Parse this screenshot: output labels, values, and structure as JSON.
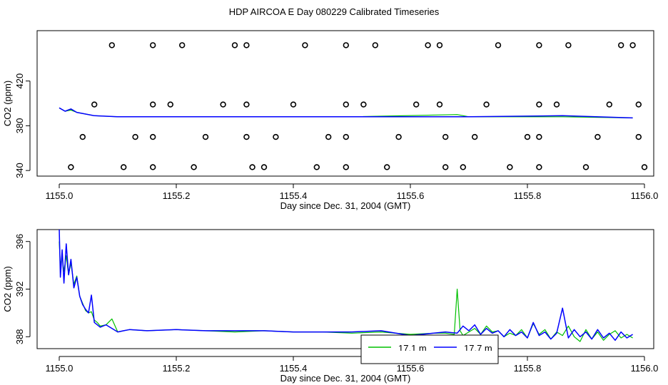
{
  "title": "HDP AIRCOA E  Day 080229  Calibrated Timeseries",
  "colors": {
    "green": "#00c000",
    "blue": "#0000ff",
    "black": "#000000"
  },
  "chart_data": [
    {
      "type": "line",
      "panel": "top",
      "xlabel": "Day since Dec. 31, 2004 (GMT)",
      "ylabel": "CO2 (ppm)",
      "xlim": [
        1155.0,
        1156.0
      ],
      "ylim": [
        335,
        465
      ],
      "xticks": [
        "1155.0",
        "1155.2",
        "1155.4",
        "1155.6",
        "1155.8",
        "1156.0"
      ],
      "yticks": [
        "340",
        "380",
        "420"
      ],
      "grid": false,
      "series": [
        {
          "color": "#00c000",
          "x": [
            1155.0,
            1155.01,
            1155.02,
            1155.03,
            1155.06,
            1155.1,
            1155.3,
            1155.5,
            1155.68,
            1155.7,
            1155.86,
            1155.98
          ],
          "y": [
            396,
            393,
            394,
            392,
            389,
            388,
            388,
            388,
            390,
            388,
            388,
            387
          ]
        },
        {
          "color": "#0000ff",
          "x": [
            1155.0,
            1155.01,
            1155.02,
            1155.03,
            1155.06,
            1155.1,
            1155.3,
            1155.5,
            1155.7,
            1155.86,
            1155.98
          ],
          "y": [
            396,
            393,
            395,
            392,
            389,
            388,
            388,
            388,
            388,
            389,
            387
          ]
        }
      ],
      "markers": {
        "symbol": "open-circle",
        "rows": [
          {
            "y": 452,
            "x": [
              1155.09,
              1155.16,
              1155.21,
              1155.3,
              1155.32,
              1155.42,
              1155.49,
              1155.54,
              1155.63,
              1155.65,
              1155.75,
              1155.82,
              1155.87,
              1155.96,
              1155.98
            ]
          },
          {
            "y": 399,
            "x": [
              1155.06,
              1155.16,
              1155.19,
              1155.28,
              1155.32,
              1155.4,
              1155.49,
              1155.52,
              1155.61,
              1155.65,
              1155.73,
              1155.82,
              1155.85,
              1155.94,
              1155.99
            ]
          },
          {
            "y": 370,
            "x": [
              1155.04,
              1155.13,
              1155.16,
              1155.25,
              1155.32,
              1155.37,
              1155.46,
              1155.49,
              1155.58,
              1155.66,
              1155.71,
              1155.8,
              1155.82,
              1155.92,
              1155.99
            ]
          },
          {
            "y": 343,
            "x": [
              1155.02,
              1155.11,
              1155.16,
              1155.23,
              1155.33,
              1155.35,
              1155.44,
              1155.49,
              1155.56,
              1155.66,
              1155.69,
              1155.77,
              1155.82,
              1155.9,
              1156.0
            ]
          }
        ]
      }
    },
    {
      "type": "line",
      "panel": "bottom",
      "xlabel": "Day since Dec. 31, 2004 (GMT)",
      "ylabel": "CO2 (ppm)",
      "xlim": [
        1155.0,
        1156.0
      ],
      "ylim": [
        387.0,
        397.0
      ],
      "xticks": [
        "1155.0",
        "1155.2",
        "1155.4",
        "1155.6",
        "1155.8",
        "1156.0"
      ],
      "yticks": [
        "388",
        "392",
        "396"
      ],
      "grid": false,
      "legend": {
        "placement": "bottom-center",
        "entries": [
          {
            "color": "#00c000",
            "label": "17.1 m"
          },
          {
            "color": "#0000ff",
            "label": "17.7 m"
          }
        ]
      },
      "series": [
        {
          "color": "#00c000",
          "label": "17.1 m",
          "x": [
            1155.0,
            1155.002,
            1155.005,
            1155.008,
            1155.012,
            1155.016,
            1155.02,
            1155.025,
            1155.03,
            1155.035,
            1155.04,
            1155.045,
            1155.05,
            1155.055,
            1155.06,
            1155.065,
            1155.07,
            1155.08,
            1155.09,
            1155.1,
            1155.11,
            1155.12,
            1155.15,
            1155.2,
            1155.25,
            1155.3,
            1155.35,
            1155.4,
            1155.45,
            1155.5,
            1155.55,
            1155.6,
            1155.64,
            1155.66,
            1155.675,
            1155.68,
            1155.685,
            1155.69,
            1155.7,
            1155.71,
            1155.72,
            1155.73,
            1155.74,
            1155.75,
            1155.76,
            1155.77,
            1155.78,
            1155.79,
            1155.8,
            1155.81,
            1155.82,
            1155.83,
            1155.84,
            1155.85,
            1155.86,
            1155.87,
            1155.88,
            1155.89,
            1155.9,
            1155.91,
            1155.92,
            1155.93,
            1155.94,
            1155.95,
            1155.96,
            1155.97,
            1155.98
          ],
          "y": [
            396,
            394,
            394.7,
            393.5,
            394.8,
            393.2,
            394.2,
            392.4,
            393.1,
            391.4,
            390.8,
            390.2,
            390.0,
            390.1,
            389.4,
            389.2,
            388.9,
            389.0,
            389.5,
            388.4,
            388.5,
            388.6,
            388.5,
            388.6,
            388.5,
            388.4,
            388.5,
            388.4,
            388.4,
            388.3,
            388.4,
            388.2,
            388.3,
            388.3,
            388.2,
            392.0,
            388.5,
            388.1,
            388.4,
            388.7,
            388.2,
            388.9,
            388.4,
            388.5,
            388.0,
            388.3,
            388.1,
            388.6,
            387.9,
            389.1,
            388.2,
            388.6,
            387.8,
            388.4,
            388.1,
            388.9,
            388.0,
            387.6,
            388.6,
            387.8,
            388.4,
            387.7,
            388.2,
            388.5,
            387.9,
            388.2,
            387.9
          ]
        },
        {
          "color": "#0000ff",
          "label": "17.7 m",
          "x": [
            1155.0,
            1155.002,
            1155.005,
            1155.008,
            1155.012,
            1155.016,
            1155.02,
            1155.025,
            1155.03,
            1155.035,
            1155.04,
            1155.045,
            1155.05,
            1155.055,
            1155.06,
            1155.065,
            1155.07,
            1155.08,
            1155.09,
            1155.1,
            1155.11,
            1155.12,
            1155.15,
            1155.2,
            1155.25,
            1155.3,
            1155.35,
            1155.4,
            1155.45,
            1155.5,
            1155.55,
            1155.6,
            1155.64,
            1155.66,
            1155.68,
            1155.69,
            1155.7,
            1155.71,
            1155.72,
            1155.73,
            1155.74,
            1155.75,
            1155.76,
            1155.77,
            1155.78,
            1155.79,
            1155.8,
            1155.81,
            1155.82,
            1155.83,
            1155.84,
            1155.85,
            1155.86,
            1155.87,
            1155.88,
            1155.89,
            1155.9,
            1155.91,
            1155.92,
            1155.93,
            1155.94,
            1155.95,
            1155.96,
            1155.97,
            1155.98
          ],
          "y": [
            397.1,
            393.0,
            395.3,
            392.5,
            395.8,
            393.2,
            394.5,
            392.1,
            393.0,
            391.4,
            390.7,
            390.3,
            390.0,
            391.5,
            389.2,
            389.0,
            388.8,
            389.0,
            388.7,
            388.4,
            388.5,
            388.6,
            388.5,
            388.6,
            388.5,
            388.5,
            388.5,
            388.4,
            388.4,
            388.4,
            388.5,
            388.1,
            388.3,
            388.4,
            388.3,
            388.9,
            388.5,
            389.0,
            388.2,
            388.7,
            388.3,
            388.5,
            388.0,
            388.6,
            388.1,
            388.4,
            387.9,
            389.2,
            388.1,
            388.4,
            387.8,
            388.3,
            390.4,
            387.9,
            388.6,
            388.0,
            388.4,
            387.8,
            388.6,
            387.9,
            388.3,
            387.7,
            388.4,
            387.9,
            388.2
          ]
        }
      ]
    }
  ]
}
